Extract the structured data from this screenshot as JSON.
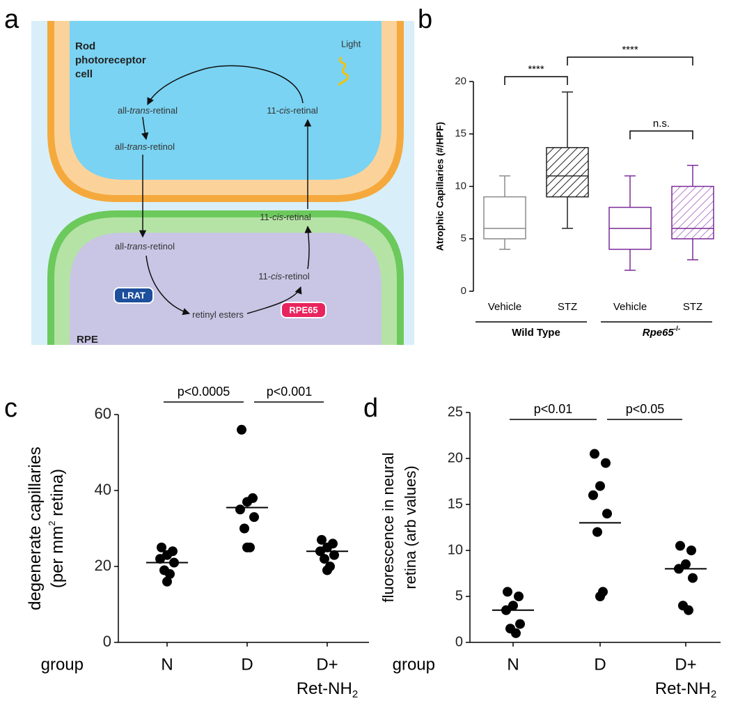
{
  "panel_labels": [
    "a",
    "b",
    "c",
    "d"
  ],
  "diagram": {
    "top_cell": [
      "Rod",
      "photoreceptor",
      "cell"
    ],
    "bottom_cell": "RPE",
    "light": "Light",
    "nodes": [
      {
        "pre": "all-",
        "em": "trans",
        "post": "-retinal"
      },
      {
        "pre": "11-",
        "em": "cis",
        "post": "-retinal"
      },
      {
        "pre": "all-",
        "em": "trans",
        "post": "-retinol"
      },
      {
        "pre": "11-",
        "em": "cis",
        "post": "-retinal"
      },
      {
        "pre": "all-",
        "em": "trans",
        "post": "-retinol"
      },
      {
        "pre": "11-",
        "em": "cis",
        "post": "-retinol"
      },
      {
        "pre": "retinyl esters",
        "em": "",
        "post": ""
      }
    ],
    "enzymes": [
      "LRAT",
      "RPE65"
    ]
  },
  "chart_data": [
    {
      "type": "box",
      "ylabel": "Atrophic Capillaries (#/HPF)",
      "categories": [
        "Vehicle",
        "STZ",
        "Vehicle",
        "STZ"
      ],
      "groups": [
        {
          "label": "Wild Type",
          "sup": ""
        },
        {
          "label": "Rpe65",
          "sup": "-/-"
        }
      ],
      "boxes": [
        {
          "color": "#8a8a8a",
          "hatch": false,
          "whislo": 4,
          "q1": 5,
          "med": 6,
          "q3": 9,
          "whishi": 11
        },
        {
          "color": "#222222",
          "hatch": true,
          "whislo": 6,
          "q1": 9,
          "med": 11,
          "q3": 13.7,
          "whishi": 19
        },
        {
          "color": "#7a2a97",
          "hatch": false,
          "whislo": 2,
          "q1": 4,
          "med": 6,
          "q3": 8,
          "whishi": 11
        },
        {
          "color": "#7a2a97",
          "hatch": true,
          "whislo": 3,
          "q1": 5,
          "med": 6,
          "q3": 10,
          "whishi": 12
        }
      ],
      "annotations": [
        "****",
        "****",
        "n.s."
      ],
      "ylim": [
        0,
        20
      ],
      "yticks": [
        0,
        5,
        10,
        15,
        20
      ]
    },
    {
      "type": "strip",
      "ylabel": [
        "degenerate capillaries",
        {
          "pre": "(per mm",
          "sup": "2",
          "post": " retina)"
        }
      ],
      "xlabel": "group",
      "categories": [
        "N",
        "D",
        "D+"
      ],
      "category_sublabel": {
        "text": "Ret-NH",
        "sub": "2"
      },
      "color": "#000000",
      "points": [
        [
          25,
          24,
          23,
          22,
          21,
          19,
          18,
          16
        ],
        [
          56,
          38,
          37,
          35,
          33,
          30,
          25,
          25
        ],
        [
          27,
          26,
          25,
          24,
          23,
          22,
          20,
          19
        ]
      ],
      "means": [
        21,
        35.5,
        24
      ],
      "annotations": [
        "p<0.0005",
        "p<0.001"
      ],
      "ylim": [
        0,
        60
      ],
      "yticks": [
        0,
        20,
        40,
        60
      ]
    },
    {
      "type": "strip",
      "ylabel": [
        "fluorescence in neural",
        {
          "pre": "retina (arb values)",
          "sup": "",
          "post": ""
        }
      ],
      "xlabel": "group",
      "categories": [
        "N",
        "D",
        "D+"
      ],
      "category_sublabel": {
        "text": "Ret-NH",
        "sub": "2"
      },
      "color": "#000000",
      "points": [
        [
          5.5,
          5,
          4,
          3.5,
          2,
          1.5,
          1
        ],
        [
          20.5,
          19.5,
          17,
          16,
          14,
          12,
          5.5,
          5
        ],
        [
          10.5,
          10,
          8.5,
          8,
          7,
          4,
          3.5
        ]
      ],
      "means": [
        3.5,
        13,
        8
      ],
      "annotations": [
        "p<0.01",
        "p<0.05"
      ],
      "ylim": [
        0,
        25
      ],
      "yticks": [
        0,
        5,
        10,
        15,
        20,
        25
      ]
    }
  ]
}
